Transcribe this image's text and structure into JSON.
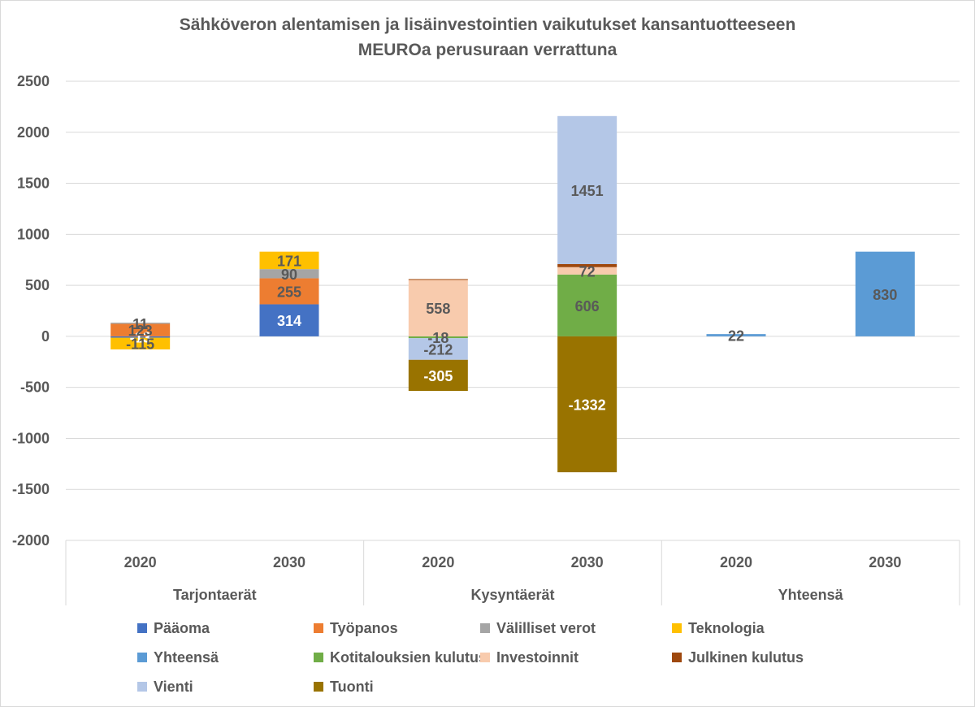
{
  "title": "Sähköveron alentamisen ja lisäinvestointien vaikutukset kansantuotteeseen",
  "subtitle": "MEUROa perusuraan verrattuna",
  "colors": {
    "text": "#595959",
    "grid": "#d9d9d9"
  },
  "chart_data": {
    "type": "bar",
    "stacked": true,
    "title": "Sähköveron alentamisen ja lisäinvestointien vaikutukset kansantuotteeseen",
    "subtitle": "MEUROa perusuraan verrattuna",
    "categories": [
      "2020",
      "2030",
      "2020",
      "2030",
      "2020",
      "2030"
    ],
    "groups": [
      {
        "label": "Tarjontaerät",
        "start": 0,
        "end": 1
      },
      {
        "label": "Kysyntäerät",
        "start": 2,
        "end": 3
      },
      {
        "label": "Yhteensä",
        "start": 4,
        "end": 5
      }
    ],
    "ylim": [
      -2000,
      2500
    ],
    "yticks": [
      2500,
      2000,
      1500,
      1000,
      500,
      0,
      -500,
      -1000,
      -1500,
      -2000
    ],
    "grid": true,
    "legend_position": "bottom",
    "series": [
      {
        "name": "Pääoma",
        "color": "#4472c4",
        "values": [
          -13,
          314,
          null,
          null,
          null,
          null
        ],
        "labels": [
          "-13",
          "314",
          "",
          "",
          "",
          ""
        ]
      },
      {
        "name": "Työpanos",
        "color": "#ed7d31",
        "values": [
          123,
          255,
          null,
          null,
          null,
          null
        ],
        "labels": [
          "123",
          "255",
          "",
          "",
          "",
          ""
        ]
      },
      {
        "name": "Välilliset verot",
        "color": "#a5a5a5",
        "values": [
          11,
          90,
          null,
          null,
          null,
          null
        ],
        "labels": [
          "11",
          "90",
          "",
          "",
          "",
          ""
        ]
      },
      {
        "name": "Teknologia",
        "color": "#ffc000",
        "values": [
          -115,
          171,
          null,
          null,
          null,
          null
        ],
        "labels": [
          "-115",
          "171",
          "",
          "",
          "",
          ""
        ]
      },
      {
        "name": "Yhteensä",
        "color": "#5b9bd5",
        "values": [
          null,
          null,
          null,
          null,
          22,
          830
        ],
        "labels": [
          "",
          "",
          "",
          "",
          "22",
          "830"
        ]
      },
      {
        "name": "Kotitalouksien kulutus",
        "color": "#70ad47",
        "values": [
          null,
          null,
          -18,
          606,
          null,
          null
        ],
        "labels": [
          "",
          "",
          "-18",
          "606",
          "",
          ""
        ]
      },
      {
        "name": "Investoinnit",
        "color": "#f8cbad",
        "values": [
          null,
          null,
          558,
          72,
          null,
          null
        ],
        "labels": [
          "",
          "",
          "558",
          "72",
          "",
          ""
        ]
      },
      {
        "name": "Julkinen kulutus",
        "color": "#9e480e",
        "values": [
          null,
          null,
          3,
          30,
          null,
          null
        ],
        "labels": [
          "",
          "",
          "",
          "",
          "",
          ""
        ]
      },
      {
        "name": "Vienti",
        "color": "#b4c7e7",
        "values": [
          null,
          null,
          -212,
          1451,
          null,
          null
        ],
        "labels": [
          "",
          "",
          "-212",
          "1451",
          "",
          ""
        ]
      },
      {
        "name": "Tuonti",
        "color": "#997300",
        "values": [
          null,
          null,
          -305,
          -1332,
          null,
          null
        ],
        "labels": [
          "",
          "",
          "-305",
          "-1332",
          "",
          ""
        ]
      }
    ]
  }
}
